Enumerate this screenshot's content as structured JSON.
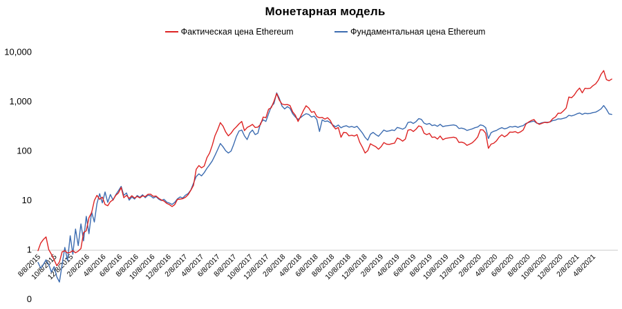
{
  "title": "Монетарная модель",
  "legend": [
    {
      "label": "Фактическая цена Ethereum",
      "color": "#dd2222"
    },
    {
      "label": "Фундаментальная цена Ethereum",
      "color": "#3b6bb0"
    }
  ],
  "colors": {
    "series_actual": "#dd2222",
    "series_fundamental": "#3b6bb0",
    "axis_line": "#c9c9c9",
    "text": "#000000",
    "background": "#ffffff"
  },
  "chart_data": {
    "type": "line",
    "title": "Монетарная модель",
    "y_scale": "log",
    "ylim": [
      0.1,
      10000
    ],
    "grid": "off",
    "legend_position": "top",
    "x_start_date": "8/8/2015",
    "x_step_days": 10,
    "x_tick_labels": [
      "8/8/2015",
      "10/8/2015",
      "12/8/2015",
      "2/8/2016",
      "4/8/2016",
      "6/8/2016",
      "8/8/2016",
      "10/8/2016",
      "12/8/2016",
      "2/8/2017",
      "4/8/2017",
      "6/8/2017",
      "8/8/2017",
      "10/8/2017",
      "12/8/2017",
      "2/8/2018",
      "4/8/2018",
      "6/8/2018",
      "8/8/2018",
      "10/8/2018",
      "12/8/2018",
      "2/8/2019",
      "4/8/2019",
      "6/8/2019",
      "8/8/2019",
      "10/8/2019",
      "12/8/2019",
      "2/8/2020",
      "4/8/2020",
      "6/8/2020",
      "8/8/2020",
      "10/8/2020",
      "12/8/2020",
      "2/8/2021",
      "4/8/2021"
    ],
    "y_ticks": [
      {
        "label": "10,000",
        "value": 10000
      },
      {
        "label": "1,000",
        "value": 1000
      },
      {
        "label": "100",
        "value": 100
      },
      {
        "label": "10",
        "value": 10
      },
      {
        "label": "1",
        "value": 1
      },
      {
        "label": "0",
        "value": 0.1
      }
    ],
    "series": [
      {
        "name": "Фактическая цена Ethereum",
        "color": "#dd2222",
        "values": [
          0.95,
          1.35,
          1.6,
          1.8,
          1.0,
          0.8,
          0.62,
          0.47,
          0.56,
          0.9,
          0.95,
          0.85,
          0.88,
          0.95,
          0.86,
          0.93,
          1.05,
          2.2,
          2.4,
          4.4,
          5.6,
          9.8,
          12.5,
          10.4,
          11.5,
          8.2,
          7.7,
          9.3,
          10.2,
          12.5,
          14.0,
          18.0,
          11.2,
          12.5,
          10.8,
          12.3,
          11.0,
          11.9,
          11.1,
          12.2,
          11.8,
          13.1,
          13.2,
          11.9,
          12.1,
          10.9,
          10.1,
          9.6,
          8.6,
          8.1,
          7.4,
          8.1,
          10.3,
          10.5,
          10.7,
          11.4,
          12.9,
          15.8,
          20,
          42,
          50,
          45,
          49,
          72,
          90,
          128,
          200,
          265,
          370,
          315,
          240,
          200,
          225,
          270,
          305,
          350,
          390,
          255,
          295,
          315,
          340,
          295,
          300,
          340,
          480,
          465,
          690,
          740,
          1000,
          1430,
          1060,
          880,
          850,
          860,
          820,
          610,
          520,
          390,
          500,
          650,
          810,
          730,
          600,
          620,
          490,
          465,
          470,
          435,
          465,
          410,
          320,
          275,
          295,
          187,
          235,
          232,
          200,
          206,
          198,
          212,
          148,
          117,
          90,
          100,
          138,
          128,
          120,
          107,
          121,
          146,
          136,
          134,
          139,
          142,
          180,
          171,
          156,
          172,
          260,
          268,
          245,
          272,
          318,
          305,
          226,
          211,
          224,
          186,
          189,
          172,
          198,
          167,
          177,
          181,
          184,
          188,
          180,
          147,
          149,
          143,
          128,
          136,
          145,
          163,
          190,
          266,
          262,
          225,
          112,
          136,
          142,
          158,
          188,
          210,
          191,
          207,
          238,
          236,
          243,
          228,
          241,
          264,
          345,
          380,
          408,
          428,
          366,
          341,
          359,
          375,
          369,
          384,
          445,
          482,
          575,
          572,
          640,
          730,
          1220,
          1180,
          1330,
          1610,
          1850,
          1480,
          1830,
          1800,
          1840,
          2070,
          2250,
          2680,
          3500,
          4180,
          2750,
          2600,
          2820
        ]
      },
      {
        "name": "Фундаментальная цена Ethereum",
        "color": "#3b6bb0",
        "values": [
          0.55,
          0.42,
          0.5,
          0.62,
          0.5,
          0.35,
          0.45,
          0.28,
          0.22,
          0.5,
          1.1,
          0.6,
          1.9,
          0.8,
          2.6,
          1.2,
          3.3,
          1.5,
          4.7,
          2.1,
          5.8,
          3.6,
          8.5,
          13.5,
          8.8,
          14.6,
          9.0,
          13.0,
          10.0,
          12.8,
          15.5,
          19.0,
          12.5,
          14.0,
          10.0,
          11.6,
          10.5,
          12.4,
          11.4,
          12.8,
          11.2,
          12.6,
          12.2,
          11.0,
          11.8,
          10.5,
          9.8,
          10.4,
          9.1,
          8.7,
          8.2,
          9.0,
          10.6,
          11.6,
          11.0,
          12.6,
          13.6,
          16,
          22,
          30,
          34,
          31,
          36,
          44,
          52,
          62,
          80,
          105,
          140,
          120,
          100,
          90,
          98,
          135,
          195,
          250,
          262,
          200,
          168,
          230,
          262,
          212,
          225,
          360,
          420,
          390,
          560,
          780,
          900,
          1480,
          1150,
          800,
          700,
          780,
          720,
          560,
          480,
          430,
          470,
          520,
          560,
          540,
          480,
          500,
          430,
          245,
          420,
          390,
          400,
          370,
          330,
          305,
          330,
          290,
          310,
          320,
          300,
          310,
          295,
          312,
          268,
          228,
          186,
          163,
          215,
          235,
          212,
          196,
          226,
          262,
          246,
          252,
          262,
          256,
          296,
          286,
          272,
          292,
          372,
          382,
          356,
          388,
          445,
          430,
          362,
          342,
          356,
          322,
          332,
          312,
          342,
          307,
          317,
          322,
          327,
          332,
          322,
          282,
          287,
          277,
          257,
          267,
          277,
          292,
          302,
          332,
          322,
          292,
          176,
          232,
          247,
          257,
          277,
          292,
          277,
          287,
          307,
          302,
          312,
          297,
          312,
          322,
          357,
          372,
          387,
          397,
          362,
          352,
          367,
          377,
          374,
          382,
          407,
          417,
          442,
          437,
          452,
          467,
          520,
          505,
          525,
          556,
          580,
          542,
          572,
          560,
          568,
          592,
          604,
          645,
          700,
          820,
          690,
          555,
          540
        ]
      }
    ]
  }
}
